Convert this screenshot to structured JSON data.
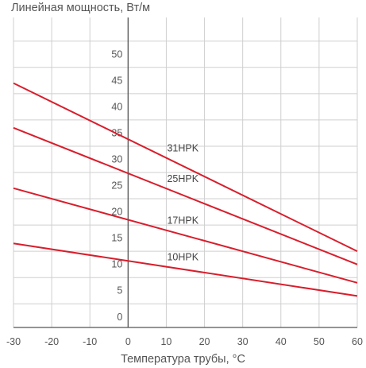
{
  "chart_data": {
    "type": "line",
    "ylabel": "Линейная мощность, Вт/м",
    "xlabel": "Температура трубы, °С",
    "xlim": [
      -30,
      60
    ],
    "ylim": [
      -2,
      57
    ],
    "x_ticks": [
      -30,
      -20,
      -10,
      0,
      10,
      20,
      30,
      40,
      50,
      60
    ],
    "y_ticks": [
      0,
      5,
      10,
      15,
      20,
      25,
      30,
      35,
      40,
      45,
      50
    ],
    "grid": true,
    "series_color": "#d81e2c",
    "series": [
      {
        "name": "31HPK",
        "x": [
          -30,
          60
        ],
        "y": [
          44.5,
          12.5
        ]
      },
      {
        "name": "25HPK",
        "x": [
          -30,
          60
        ],
        "y": [
          36.0,
          10.0
        ]
      },
      {
        "name": "17HPK",
        "x": [
          -30,
          60
        ],
        "y": [
          24.5,
          6.5
        ]
      },
      {
        "name": "10HPK",
        "x": [
          -30,
          60
        ],
        "y": [
          14.0,
          4.0
        ]
      }
    ]
  }
}
